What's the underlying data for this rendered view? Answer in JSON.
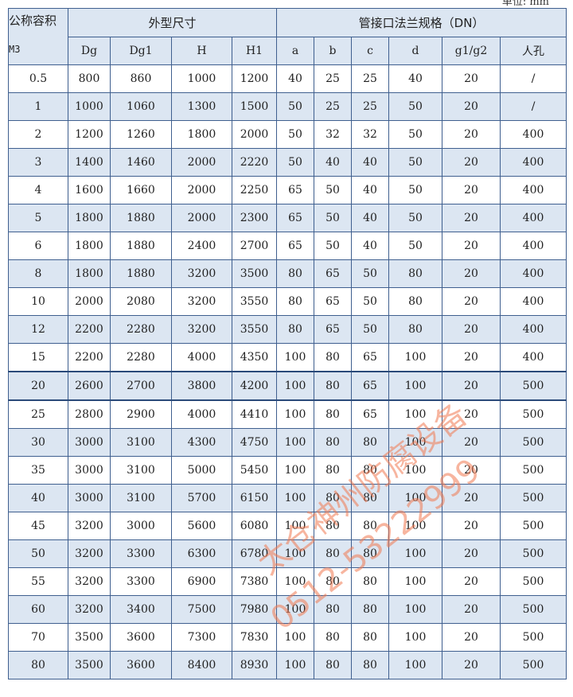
{
  "unit_label": "单位: mm",
  "header": {
    "capacity": "公称容积",
    "capacity_unit": "M3",
    "shape_group": "外型尺寸",
    "flange_group": "管接口法兰规格（DN）",
    "columns": [
      "Dg",
      "Dg1",
      "H",
      "H1",
      "a",
      "b",
      "c",
      "d",
      "g1/g2",
      "人孔"
    ]
  },
  "rows": [
    [
      "0.5",
      "800",
      "860",
      "1000",
      "1200",
      "40",
      "25",
      "25",
      "40",
      "20",
      "/"
    ],
    [
      "1",
      "1000",
      "1060",
      "1300",
      "1500",
      "50",
      "25",
      "25",
      "50",
      "20",
      "/"
    ],
    [
      "2",
      "1200",
      "1260",
      "1800",
      "2000",
      "50",
      "32",
      "32",
      "50",
      "20",
      "400"
    ],
    [
      "3",
      "1400",
      "1460",
      "2000",
      "2220",
      "50",
      "40",
      "40",
      "50",
      "20",
      "400"
    ],
    [
      "4",
      "1600",
      "1660",
      "2000",
      "2250",
      "65",
      "50",
      "40",
      "50",
      "20",
      "400"
    ],
    [
      "5",
      "1800",
      "1880",
      "2000",
      "2300",
      "65",
      "50",
      "40",
      "50",
      "20",
      "400"
    ],
    [
      "6",
      "1800",
      "1880",
      "2400",
      "2700",
      "65",
      "50",
      "40",
      "50",
      "20",
      "400"
    ],
    [
      "8",
      "1800",
      "1880",
      "3200",
      "3500",
      "80",
      "65",
      "50",
      "80",
      "20",
      "400"
    ],
    [
      "10",
      "2000",
      "2080",
      "3200",
      "3550",
      "80",
      "65",
      "50",
      "80",
      "20",
      "400"
    ],
    [
      "12",
      "2200",
      "2280",
      "3200",
      "3550",
      "80",
      "65",
      "50",
      "80",
      "20",
      "400"
    ],
    [
      "15",
      "2200",
      "2280",
      "4000",
      "4350",
      "100",
      "80",
      "65",
      "100",
      "20",
      "400"
    ],
    [
      "20",
      "2600",
      "2700",
      "3800",
      "4200",
      "100",
      "80",
      "65",
      "100",
      "20",
      "500"
    ],
    [
      "25",
      "2800",
      "2900",
      "4000",
      "4410",
      "100",
      "80",
      "65",
      "100",
      "20",
      "500"
    ],
    [
      "30",
      "3000",
      "3100",
      "4300",
      "4750",
      "100",
      "80",
      "80",
      "100",
      "20",
      "500"
    ],
    [
      "35",
      "3000",
      "3100",
      "5000",
      "5450",
      "100",
      "80",
      "80",
      "100",
      "20",
      "500"
    ],
    [
      "40",
      "3000",
      "3100",
      "5700",
      "6150",
      "100",
      "80",
      "80",
      "100",
      "20",
      "500"
    ],
    [
      "45",
      "3200",
      "3000",
      "5600",
      "6080",
      "100",
      "80",
      "80",
      "100",
      "20",
      "500"
    ],
    [
      "50",
      "3200",
      "3300",
      "6300",
      "6780",
      "100",
      "80",
      "80",
      "100",
      "20",
      "500"
    ],
    [
      "55",
      "3200",
      "3300",
      "6900",
      "7380",
      "100",
      "80",
      "80",
      "100",
      "20",
      "500"
    ],
    [
      "60",
      "3200",
      "3400",
      "7500",
      "7980",
      "100",
      "80",
      "80",
      "100",
      "20",
      "500"
    ],
    [
      "70",
      "3500",
      "3600",
      "7300",
      "7830",
      "100",
      "80",
      "80",
      "100",
      "20",
      "500"
    ],
    [
      "80",
      "3500",
      "3600",
      "8400",
      "8930",
      "100",
      "80",
      "80",
      "100",
      "20",
      "500"
    ]
  ],
  "selected_row": "20",
  "watermark": {
    "company": "太仓神州防腐设备",
    "phone": "0512-53222999"
  }
}
